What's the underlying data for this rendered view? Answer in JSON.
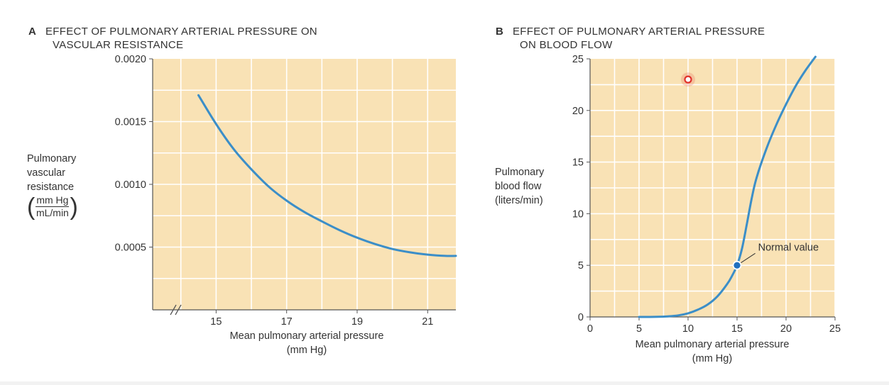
{
  "chart_data": [
    {
      "id": "A",
      "type": "line",
      "panel_letter": "A",
      "title": [
        "EFFECT OF PULMONARY ARTERIAL PRESSURE ON",
        "VASCULAR RESISTANCE"
      ],
      "xlabel": [
        "Mean pulmonary arterial pressure",
        "(mm Hg)"
      ],
      "ylabel": [
        "Pulmonary",
        "vascular",
        "resistance"
      ],
      "ylabel_unit_num": "mm Hg",
      "ylabel_unit_den": "mL/min",
      "x_ticks": [
        15,
        17,
        19,
        21
      ],
      "x_tick_labels": [
        "15",
        "17",
        "19",
        "21"
      ],
      "y_ticks": [
        0.0005,
        0.001,
        0.0015,
        0.002
      ],
      "y_tick_labels": [
        "0.0005",
        "0.0010",
        "0.0015",
        "0.0020"
      ],
      "xlim": [
        13.2,
        21.8
      ],
      "ylim": [
        0,
        0.002
      ],
      "axis_break": true,
      "grid": true,
      "series": [
        {
          "name": "Resistance",
          "x": [
            14.5,
            15.0,
            15.5,
            16.0,
            16.5,
            17.0,
            17.5,
            18.0,
            18.5,
            19.0,
            19.5,
            20.0,
            20.5,
            21.0,
            21.5,
            21.8
          ],
          "y": [
            0.00171,
            0.00148,
            0.00128,
            0.00112,
            0.00098,
            0.00087,
            0.00078,
            0.000705,
            0.000635,
            0.000575,
            0.000525,
            0.000485,
            0.000458,
            0.00044,
            0.00043,
            0.00043
          ]
        }
      ],
      "colors": {
        "background": "#f9e2b5",
        "grid": "#ffffff",
        "line": "#3b8ec8",
        "axis": "#555555"
      }
    },
    {
      "id": "B",
      "type": "line",
      "panel_letter": "B",
      "title": [
        "EFFECT OF PULMONARY ARTERIAL PRESSURE",
        "ON BLOOD FLOW"
      ],
      "xlabel": [
        "Mean pulmonary arterial pressure",
        "(mm Hg)"
      ],
      "ylabel": [
        "Pulmonary",
        "blood flow",
        "(liters/min)"
      ],
      "x_ticks": [
        0,
        5,
        10,
        15,
        20,
        25
      ],
      "x_tick_labels": [
        "0",
        "5",
        "10",
        "15",
        "20",
        "25"
      ],
      "y_ticks": [
        0,
        5,
        10,
        15,
        20,
        25
      ],
      "y_tick_labels": [
        "0",
        "5",
        "10",
        "15",
        "20",
        "25"
      ],
      "xlim": [
        0,
        25
      ],
      "ylim": [
        0,
        25
      ],
      "grid": true,
      "series": [
        {
          "name": "Blood flow",
          "x": [
            5,
            7,
            8,
            9,
            10,
            11,
            12,
            13,
            14,
            14.5,
            15,
            15.5,
            16,
            16.5,
            17,
            18,
            19,
            20,
            21,
            22,
            23
          ],
          "y": [
            0,
            0.02,
            0.06,
            0.15,
            0.35,
            0.7,
            1.2,
            2.0,
            3.2,
            4.0,
            5.0,
            6.6,
            9.0,
            11.5,
            13.5,
            16.3,
            18.6,
            20.6,
            22.4,
            23.9,
            25.2
          ]
        }
      ],
      "annotation": {
        "label": "Normal value",
        "x": 15,
        "y": 5,
        "label_x": 17.0,
        "label_y": 6.3
      },
      "marker": {
        "x": 10,
        "y": 23
      },
      "colors": {
        "background": "#f9e2b5",
        "grid": "#ffffff",
        "line": "#3b8ec8",
        "axis": "#555555",
        "marker": "#e0322c"
      }
    }
  ]
}
